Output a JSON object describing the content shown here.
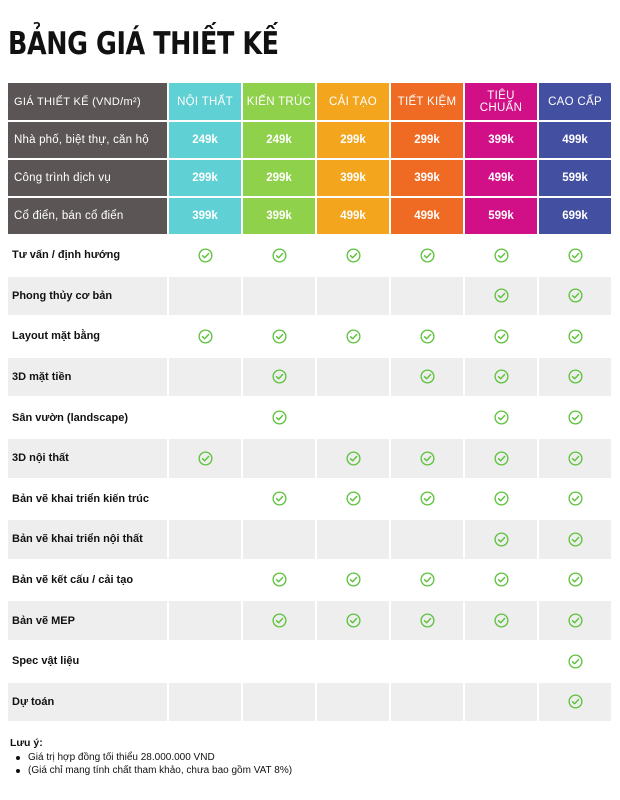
{
  "title": "BẢNG GIÁ THIẾT KẾ",
  "header": {
    "first": "GIÁ THIẾT KẾ (VND/m²)",
    "plans": [
      {
        "key": "noithat",
        "label": "NỘI THẤT",
        "color": "#5fd0d3"
      },
      {
        "key": "kientruc",
        "label": "KIẾN TRÚC",
        "color": "#8fd14a"
      },
      {
        "key": "caitao",
        "label": "CẢI TẠO",
        "color": "#f2a51d"
      },
      {
        "key": "tietkiem",
        "label": "TIẾT KIỆM",
        "color": "#ef6a22"
      },
      {
        "key": "tieuchuan",
        "label": "TIÊU CHUẨN",
        "color": "#d10f87"
      },
      {
        "key": "caocap",
        "label": "CAO CẤP",
        "color": "#434fa1"
      }
    ]
  },
  "prices": [
    {
      "label": "Nhà phố, biệt thự, căn hộ",
      "values": [
        "249k",
        "249k",
        "299k",
        "299k",
        "399k",
        "499k"
      ]
    },
    {
      "label": "Công trình dịch vụ",
      "values": [
        "299k",
        "299k",
        "399k",
        "399k",
        "499k",
        "599k"
      ]
    },
    {
      "label": "Cổ điển, bán cổ điển",
      "values": [
        "399k",
        "399k",
        "499k",
        "499k",
        "599k",
        "699k"
      ]
    }
  ],
  "features": [
    {
      "label": "Tư vấn / định hướng",
      "checks": [
        true,
        true,
        true,
        true,
        true,
        true
      ]
    },
    {
      "label": "Phong thủy cơ bản",
      "checks": [
        false,
        false,
        false,
        false,
        true,
        true
      ]
    },
    {
      "label": "Layout mặt bằng",
      "checks": [
        true,
        true,
        true,
        true,
        true,
        true
      ]
    },
    {
      "label": "3D mặt tiền",
      "checks": [
        false,
        true,
        false,
        true,
        true,
        true
      ]
    },
    {
      "label": "Sân vườn (landscape)",
      "checks": [
        false,
        true,
        false,
        false,
        true,
        true
      ]
    },
    {
      "label": "3D nội thất",
      "checks": [
        true,
        false,
        true,
        true,
        true,
        true
      ]
    },
    {
      "label": "Bản vẽ khai triển kiến trúc",
      "checks": [
        false,
        true,
        true,
        true,
        true,
        true
      ]
    },
    {
      "label": "Bản vẽ khai triển nội thất",
      "checks": [
        false,
        false,
        false,
        false,
        true,
        true
      ]
    },
    {
      "label": "Bản vẽ kết cấu / cải tạo",
      "checks": [
        false,
        true,
        true,
        true,
        true,
        true
      ]
    },
    {
      "label": "Bản vẽ MEP",
      "checks": [
        false,
        true,
        true,
        true,
        true,
        true
      ]
    },
    {
      "label": "Spec vật liệu",
      "checks": [
        false,
        false,
        false,
        false,
        false,
        true
      ]
    },
    {
      "label": "Dự toán",
      "checks": [
        false,
        false,
        false,
        false,
        false,
        true
      ]
    }
  ],
  "check_icon": "check-circle-icon",
  "check_color": "#5cc23a",
  "notes": {
    "title": "Lưu ý:",
    "items": [
      "Giá trị hợp đồng tối thiểu 28.000.000 VND",
      "(Giá chỉ mang tính chất tham khảo, chưa bao gồm VAT 8%)"
    ]
  }
}
